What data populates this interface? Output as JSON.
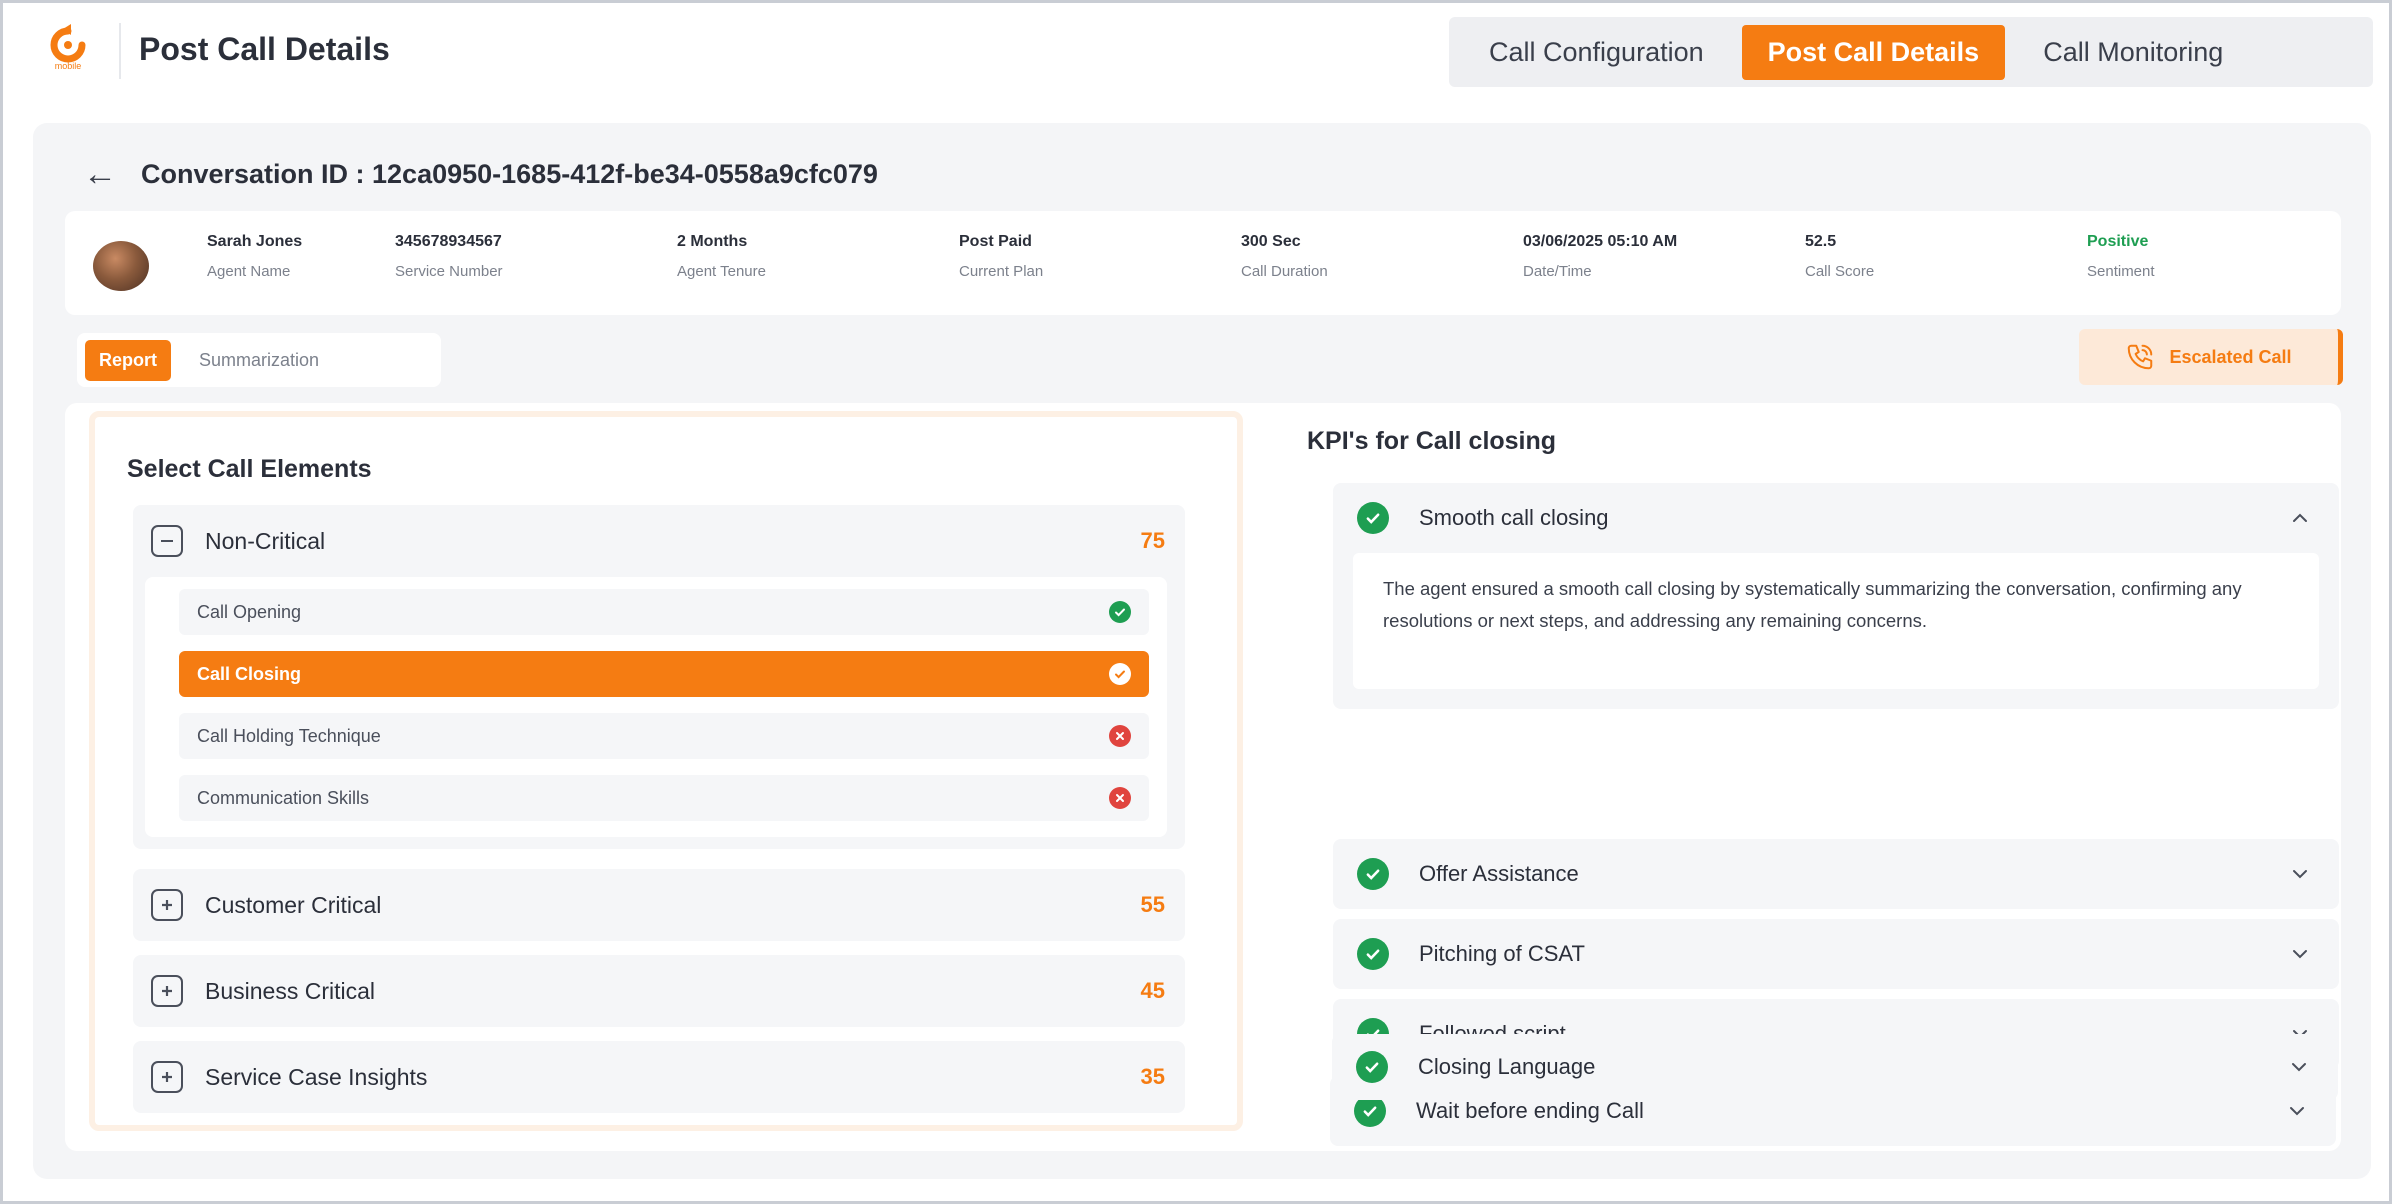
{
  "brand": {
    "logo_text": "mobile",
    "accent": "#f57c12"
  },
  "header": {
    "title": "Post Call Details",
    "tabs": [
      {
        "label": "Call Configuration",
        "active": false
      },
      {
        "label": "Post Call Details",
        "active": true
      },
      {
        "label": "Call Monitoring",
        "active": false
      }
    ]
  },
  "conversation": {
    "title": "Conversation ID : 12ca0950-1685-412f-be34-0558a9cfc079"
  },
  "info": [
    {
      "value": "Sarah Jones",
      "label": "Agent Name"
    },
    {
      "value": "345678934567",
      "label": "Service Number"
    },
    {
      "value": "2 Months",
      "label": "Agent Tenure"
    },
    {
      "value": "Post Paid",
      "label": "Current Plan"
    },
    {
      "value": "300 Sec",
      "label": "Call Duration"
    },
    {
      "value": "03/06/2025 05:10 AM",
      "label": "Date/Time"
    },
    {
      "value": "52.5",
      "label": "Call Score"
    },
    {
      "value": "Positive",
      "label": "Sentiment"
    }
  ],
  "report_tabs": [
    {
      "label": "Report",
      "active": true
    },
    {
      "label": "Summarization",
      "active": false
    }
  ],
  "escalated": {
    "label": "Escalated Call",
    "icon": "phone-call-icon"
  },
  "left": {
    "title": "Select Call Elements",
    "groups": [
      {
        "label": "Non-Critical",
        "count": "75",
        "expanded": true,
        "items": [
          {
            "label": "Call Opening",
            "status": "pass"
          },
          {
            "label": "Call Closing",
            "status": "pass",
            "active": true
          },
          {
            "label": "Call Holding Technique",
            "status": "fail"
          },
          {
            "label": "Communication Skills",
            "status": "fail"
          }
        ]
      },
      {
        "label": "Customer Critical",
        "count": "55",
        "expanded": false
      },
      {
        "label": "Business Critical",
        "count": "45",
        "expanded": false
      },
      {
        "label": "Service Case Insights",
        "count": "35",
        "expanded": false
      }
    ]
  },
  "right": {
    "title": "KPI's for Call  closing",
    "kpis": [
      {
        "label": "Smooth call closing",
        "expanded": true,
        "description": "The agent ensured a smooth call closing by systematically summarizing the conversation, confirming any resolutions or next steps, and addressing any remaining concerns."
      },
      {
        "label": "Offer Assistance",
        "expanded": false
      },
      {
        "label": "Pitching of CSAT",
        "expanded": false
      },
      {
        "label": "Followed script",
        "expanded": false
      },
      {
        "label": "Wait before ending Call",
        "expanded": false
      },
      {
        "label": "Closing Language",
        "expanded": false
      }
    ]
  },
  "colors": {
    "pass": "#1e9e52",
    "fail": "#e0443e",
    "accent": "#f57c12"
  }
}
